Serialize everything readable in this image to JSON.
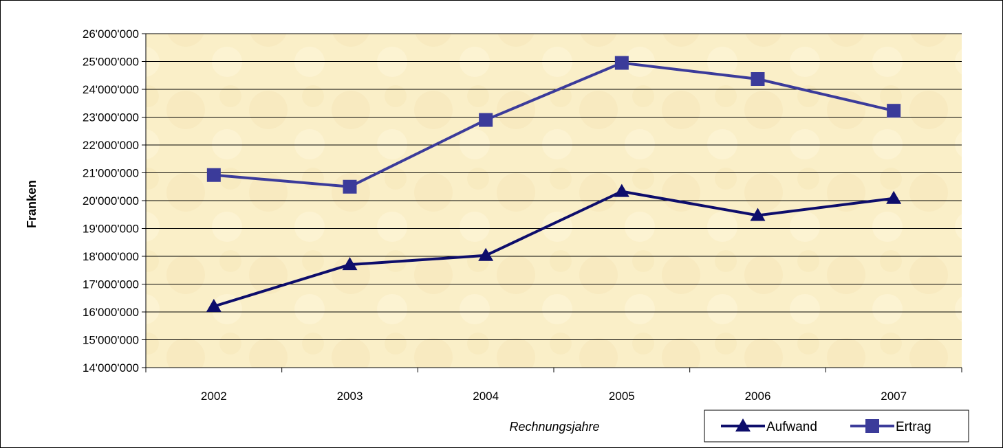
{
  "chart_data": {
    "type": "line",
    "categories": [
      "2002",
      "2003",
      "2004",
      "2005",
      "2006",
      "2007"
    ],
    "series": [
      {
        "name": "Aufwand",
        "values": [
          16200000,
          17700000,
          18030000,
          20330000,
          19470000,
          20080000
        ],
        "color": "#0d0d6b",
        "marker": "triangle"
      },
      {
        "name": "Ertrag",
        "values": [
          20920000,
          20500000,
          22900000,
          24950000,
          24370000,
          23230000
        ],
        "color": "#3b3b9a",
        "marker": "square"
      }
    ],
    "ylim": [
      14000000,
      26000000
    ],
    "yticks": [
      "14'000'000",
      "15'000'000",
      "16'000'000",
      "17'000'000",
      "18'000'000",
      "19'000'000",
      "20'000'000",
      "21'000'000",
      "22'000'000",
      "23'000'000",
      "24'000'000",
      "25'000'000",
      "26'000'000"
    ],
    "ylabel": "Franken",
    "xlabel": "Rechnungsjahre",
    "grid": true,
    "legend": "bottom-right",
    "plot_background": "#faefc8"
  }
}
